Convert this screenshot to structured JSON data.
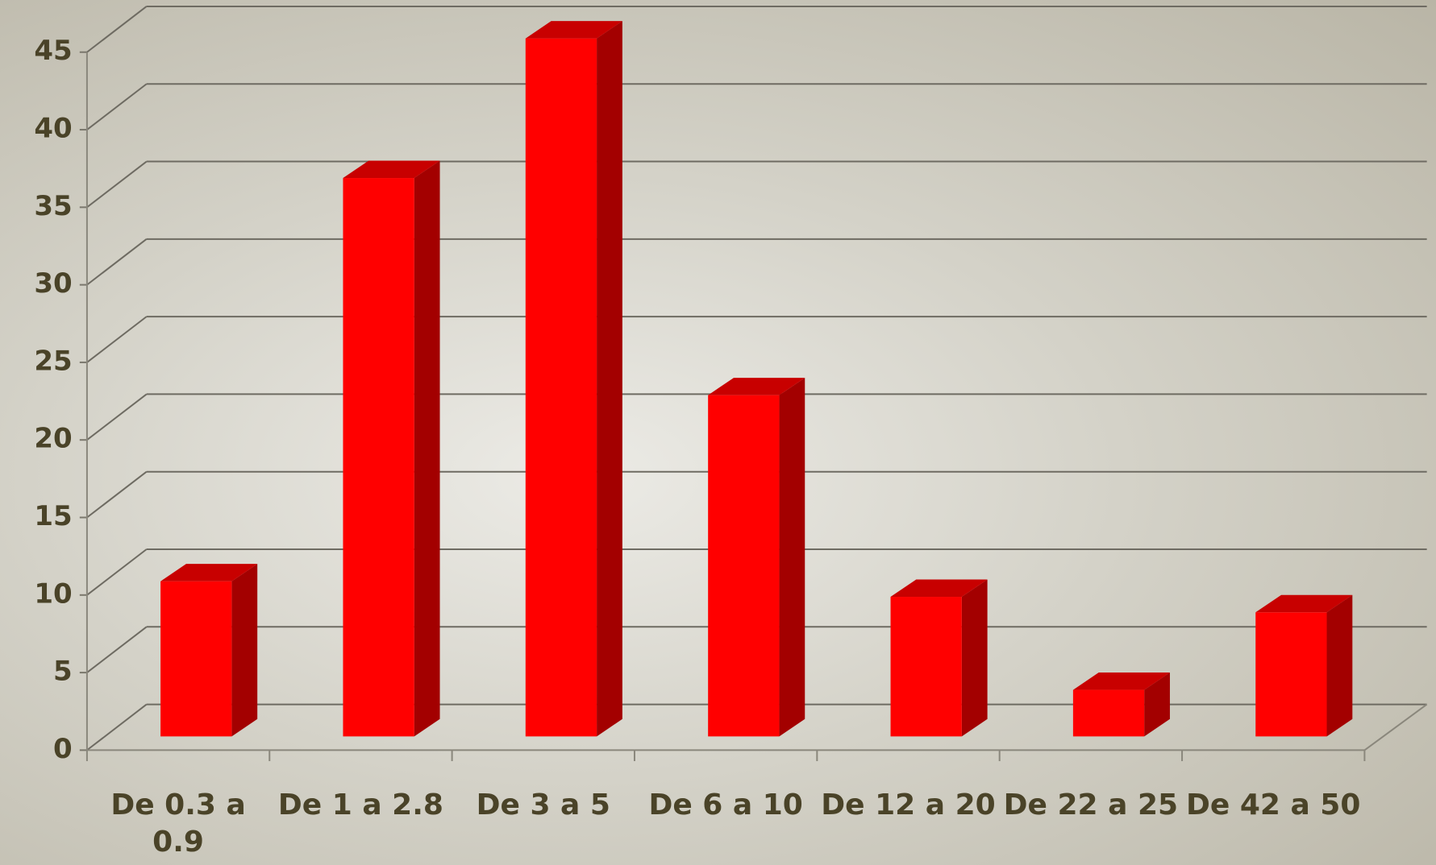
{
  "chart_data": {
    "type": "bar",
    "categories": [
      "De 0.3 a 0.9",
      "De 1 a 2.8",
      "De 3 a 5",
      "De 6 a 10",
      "De 12 a 20",
      "De 22 a 25",
      "De 42 a 50"
    ],
    "values": [
      10,
      36,
      45,
      22,
      9,
      3,
      8
    ],
    "color": "#ff0000",
    "ylim": [
      0,
      45
    ],
    "yticks": [
      0,
      5,
      10,
      15,
      20,
      25,
      30,
      35,
      40,
      45
    ],
    "grid": true
  }
}
